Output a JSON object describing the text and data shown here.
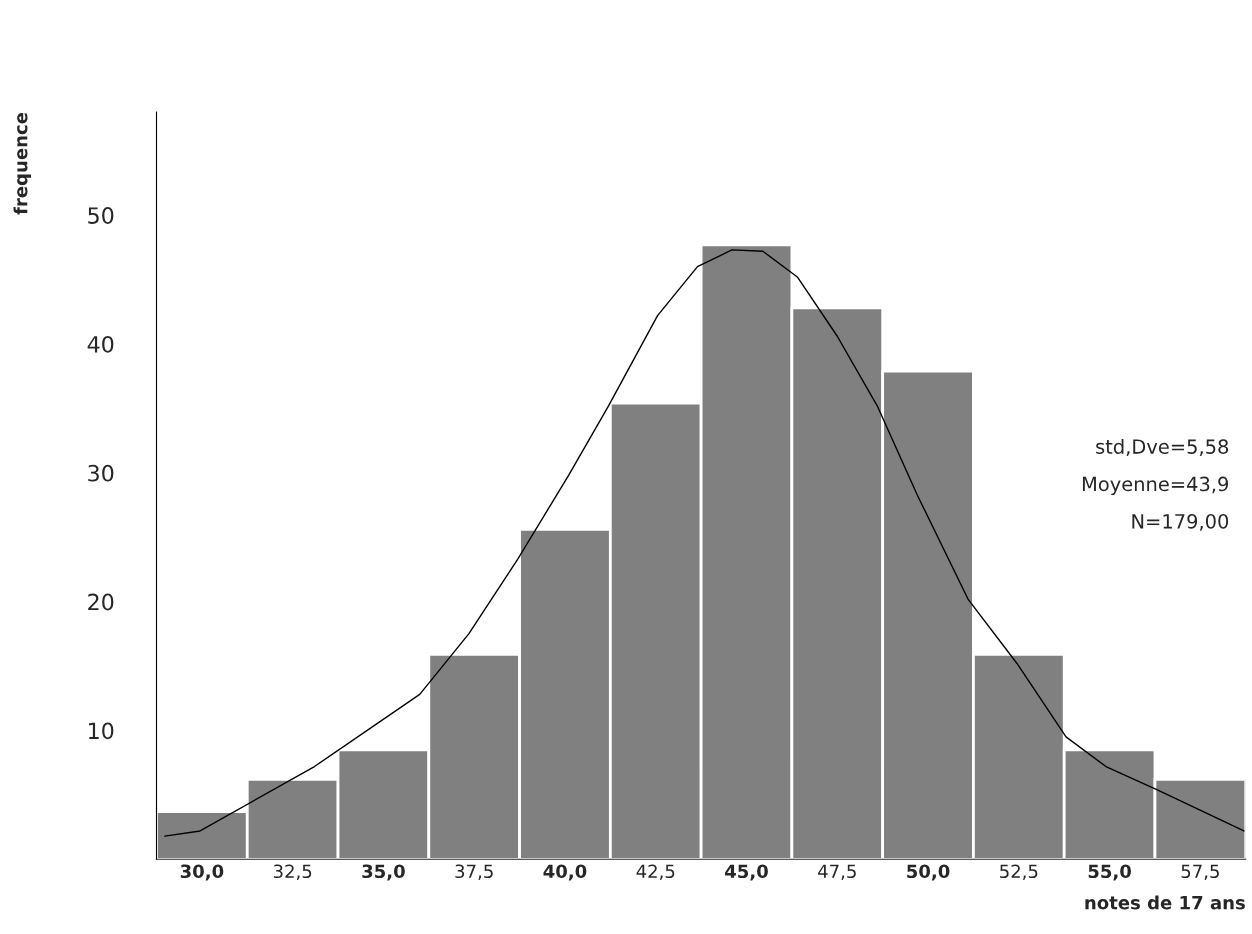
{
  "chart_data": {
    "type": "histogram",
    "xlabel": "notes de 17 ans",
    "ylabel": "frequence",
    "bins": [
      28.75,
      31.25,
      33.75,
      36.25,
      38.75,
      41.25,
      43.75,
      46.25,
      48.75,
      51.25,
      53.75,
      56.25,
      58.75
    ],
    "values": [
      3.7,
      6.2,
      8.5,
      15.9,
      25.6,
      35.4,
      47.7,
      42.8,
      37.9,
      15.9,
      8.5,
      6.2
    ],
    "color": "#808080",
    "series": [
      {
        "type": "line",
        "color": "#000000",
        "x": [
          28.98,
          29.95,
          33.1,
          36.0,
          37.35,
          38.7,
          40.1,
          41.2,
          42.55,
          43.65,
          44.6,
          45.45,
          46.4,
          47.5,
          48.6,
          49.7,
          51.1,
          52.45,
          53.8,
          54.9,
          56.3,
          58.7
        ],
        "values": [
          1.8,
          2.2,
          7.2,
          12.8,
          17.5,
          23.3,
          29.8,
          35.2,
          42.2,
          46.0,
          47.3,
          47.2,
          45.2,
          40.6,
          35.2,
          28.3,
          20.2,
          15.2,
          9.5,
          7.2,
          5.4,
          2.2
        ]
      }
    ],
    "xlim": [
      28.75,
      58.75
    ],
    "ylim": [
      0,
      58
    ],
    "xticks": [
      {
        "value": 30,
        "label": "30,0"
      },
      {
        "value": 32.5,
        "label": "32,5"
      },
      {
        "value": 35,
        "label": "35,0"
      },
      {
        "value": 37.5,
        "label": "37,5"
      },
      {
        "value": 40,
        "label": "40,0"
      },
      {
        "value": 42.5,
        "label": "42,5"
      },
      {
        "value": 45,
        "label": "45,0"
      },
      {
        "value": 47.5,
        "label": "47,5"
      },
      {
        "value": 50,
        "label": "50,0"
      },
      {
        "value": 52.5,
        "label": "52,5"
      },
      {
        "value": 55,
        "label": "55,0"
      },
      {
        "value": 57.5,
        "label": "57,5"
      }
    ],
    "yticks": [
      10,
      20,
      30,
      40,
      50
    ],
    "annotations": [
      "std,Dve=5,58",
      "Moyenne=43,9",
      "N=179,00"
    ],
    "grid": false,
    "legend": false
  }
}
